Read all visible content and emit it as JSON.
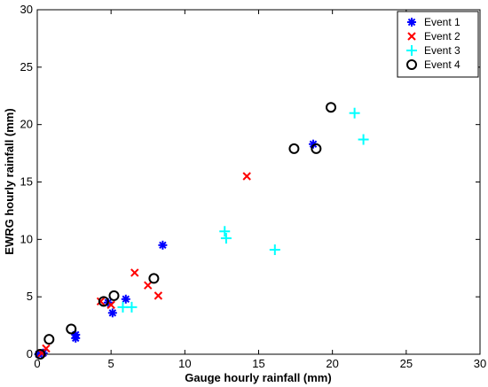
{
  "chart_data": {
    "type": "scatter",
    "xlabel": "Gauge hourly rainfall (mm)",
    "ylabel": "EWRG hourly rainfall (mm)",
    "xlim": [
      0,
      30
    ],
    "ylim": [
      0,
      30
    ],
    "xticks": [
      0,
      5,
      10,
      15,
      20,
      25,
      30
    ],
    "yticks": [
      0,
      5,
      10,
      15,
      20,
      25,
      30
    ],
    "grid": false,
    "legend_position": "top-right",
    "series": [
      {
        "name": "Event 1",
        "marker": "asterisk",
        "color": "#0000FF",
        "points": [
          [
            0.1,
            0.0
          ],
          [
            0.4,
            0.1
          ],
          [
            2.6,
            1.4
          ],
          [
            2.6,
            1.7
          ],
          [
            4.8,
            4.5
          ],
          [
            5.1,
            3.6
          ],
          [
            6.0,
            4.8
          ],
          [
            8.5,
            9.5
          ],
          [
            18.7,
            18.3
          ]
        ]
      },
      {
        "name": "Event 2",
        "marker": "x",
        "color": "#FF0000",
        "points": [
          [
            0.3,
            0.1
          ],
          [
            0.6,
            0.5
          ],
          [
            4.3,
            4.6
          ],
          [
            5.0,
            4.3
          ],
          [
            6.6,
            7.1
          ],
          [
            7.5,
            6.0
          ],
          [
            8.2,
            5.1
          ],
          [
            14.2,
            15.5
          ]
        ]
      },
      {
        "name": "Event 3",
        "marker": "plus",
        "color": "#00FFFF",
        "points": [
          [
            5.8,
            4.1
          ],
          [
            6.4,
            4.1
          ],
          [
            12.7,
            10.7
          ],
          [
            12.8,
            10.1
          ],
          [
            16.1,
            9.1
          ],
          [
            21.5,
            21.0
          ],
          [
            22.1,
            18.7
          ]
        ]
      },
      {
        "name": "Event 4",
        "marker": "circle",
        "color": "#000000",
        "points": [
          [
            0.2,
            0.0
          ],
          [
            0.8,
            1.3
          ],
          [
            2.3,
            2.2
          ],
          [
            4.5,
            4.6
          ],
          [
            5.2,
            5.1
          ],
          [
            7.9,
            6.6
          ],
          [
            17.4,
            17.9
          ],
          [
            18.9,
            17.9
          ],
          [
            19.9,
            21.5
          ]
        ]
      }
    ]
  }
}
